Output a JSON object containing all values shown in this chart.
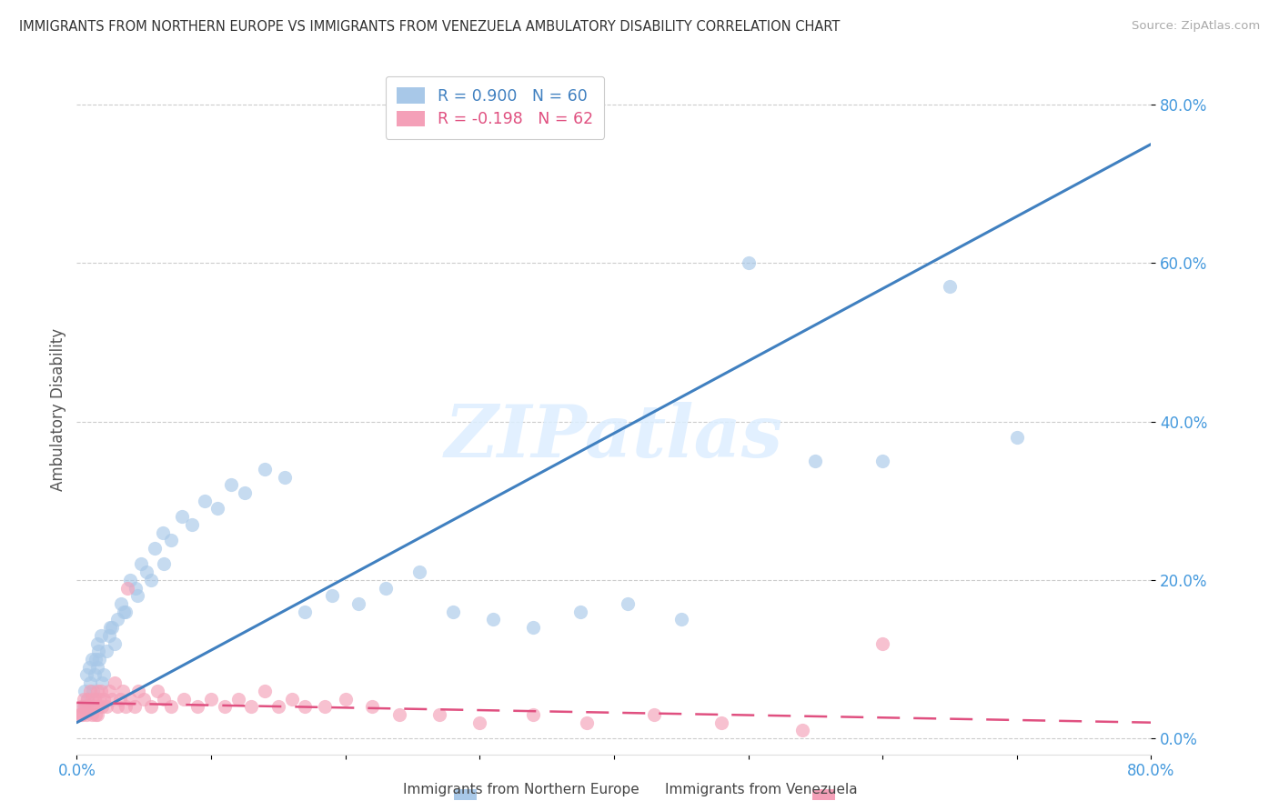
{
  "title": "IMMIGRANTS FROM NORTHERN EUROPE VS IMMIGRANTS FROM VENEZUELA AMBULATORY DISABILITY CORRELATION CHART",
  "source": "Source: ZipAtlas.com",
  "ylabel": "Ambulatory Disability",
  "blue_R": 0.9,
  "blue_N": 60,
  "pink_R": -0.198,
  "pink_N": 62,
  "blue_color": "#a8c8e8",
  "pink_color": "#f4a0b8",
  "blue_line_color": "#4080c0",
  "pink_line_color": "#e05080",
  "blue_tick_color": "#4499dd",
  "watermark_color": "#ddeeff",
  "watermark": "ZIPatlas",
  "legend_label_blue": "Immigrants from Northern Europe",
  "legend_label_pink": "Immigrants from Venezuela",
  "xlim": [
    0.0,
    0.8
  ],
  "ylim": [
    -0.02,
    0.85
  ],
  "ytick_vals": [
    0.0,
    0.2,
    0.4,
    0.6,
    0.8
  ],
  "ytick_labels": [
    "0.0%",
    "20.0%",
    "40.0%",
    "60.0%",
    "80.0%"
  ],
  "blue_line_x0": 0.0,
  "blue_line_y0": 0.02,
  "blue_line_x1": 0.8,
  "blue_line_y1": 0.75,
  "pink_line_x0": 0.0,
  "pink_line_y0": 0.045,
  "pink_line_x1": 0.8,
  "pink_line_y1": 0.02,
  "blue_scatter_x": [
    0.005,
    0.006,
    0.007,
    0.008,
    0.009,
    0.01,
    0.011,
    0.012,
    0.013,
    0.014,
    0.015,
    0.016,
    0.017,
    0.018,
    0.019,
    0.02,
    0.022,
    0.024,
    0.026,
    0.028,
    0.03,
    0.033,
    0.036,
    0.04,
    0.044,
    0.048,
    0.052,
    0.058,
    0.064,
    0.07,
    0.078,
    0.086,
    0.095,
    0.105,
    0.115,
    0.125,
    0.14,
    0.155,
    0.17,
    0.19,
    0.21,
    0.23,
    0.255,
    0.28,
    0.31,
    0.34,
    0.375,
    0.41,
    0.45,
    0.5,
    0.55,
    0.6,
    0.65,
    0.7,
    0.015,
    0.025,
    0.035,
    0.045,
    0.055,
    0.065
  ],
  "blue_scatter_y": [
    0.04,
    0.06,
    0.08,
    0.05,
    0.09,
    0.07,
    0.1,
    0.06,
    0.08,
    0.1,
    0.09,
    0.11,
    0.1,
    0.13,
    0.07,
    0.08,
    0.11,
    0.13,
    0.14,
    0.12,
    0.15,
    0.17,
    0.16,
    0.2,
    0.19,
    0.22,
    0.21,
    0.24,
    0.26,
    0.25,
    0.28,
    0.27,
    0.3,
    0.29,
    0.32,
    0.31,
    0.34,
    0.33,
    0.16,
    0.18,
    0.17,
    0.19,
    0.21,
    0.16,
    0.15,
    0.14,
    0.16,
    0.17,
    0.15,
    0.6,
    0.35,
    0.35,
    0.57,
    0.38,
    0.12,
    0.14,
    0.16,
    0.18,
    0.2,
    0.22
  ],
  "pink_scatter_x": [
    0.002,
    0.003,
    0.004,
    0.005,
    0.006,
    0.007,
    0.008,
    0.009,
    0.01,
    0.011,
    0.012,
    0.013,
    0.014,
    0.015,
    0.016,
    0.017,
    0.018,
    0.019,
    0.02,
    0.022,
    0.024,
    0.026,
    0.028,
    0.03,
    0.032,
    0.034,
    0.036,
    0.038,
    0.04,
    0.043,
    0.046,
    0.05,
    0.055,
    0.06,
    0.065,
    0.07,
    0.08,
    0.09,
    0.1,
    0.11,
    0.12,
    0.13,
    0.14,
    0.15,
    0.16,
    0.17,
    0.185,
    0.2,
    0.22,
    0.24,
    0.27,
    0.3,
    0.34,
    0.38,
    0.43,
    0.48,
    0.54,
    0.6,
    0.003,
    0.007,
    0.011,
    0.015
  ],
  "pink_scatter_y": [
    0.03,
    0.04,
    0.03,
    0.05,
    0.04,
    0.03,
    0.05,
    0.04,
    0.06,
    0.03,
    0.04,
    0.05,
    0.03,
    0.06,
    0.04,
    0.05,
    0.06,
    0.04,
    0.05,
    0.04,
    0.06,
    0.05,
    0.07,
    0.04,
    0.05,
    0.06,
    0.04,
    0.19,
    0.05,
    0.04,
    0.06,
    0.05,
    0.04,
    0.06,
    0.05,
    0.04,
    0.05,
    0.04,
    0.05,
    0.04,
    0.05,
    0.04,
    0.06,
    0.04,
    0.05,
    0.04,
    0.04,
    0.05,
    0.04,
    0.03,
    0.03,
    0.02,
    0.03,
    0.02,
    0.03,
    0.02,
    0.01,
    0.12,
    0.03,
    0.04,
    0.05,
    0.03
  ]
}
